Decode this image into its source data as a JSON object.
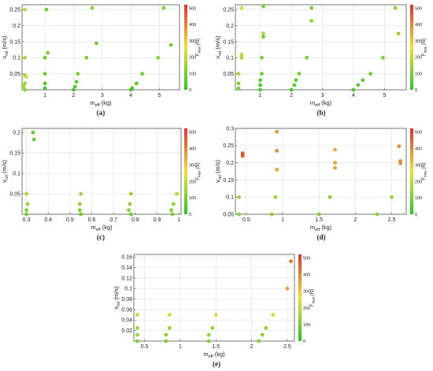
{
  "colorbar": {
    "label": "F_max (N)",
    "ticks": [
      0,
      100,
      200,
      300,
      400,
      500
    ],
    "range": [
      0,
      520
    ],
    "colors": [
      "#22cc22",
      "#f0e030",
      "#e53030"
    ]
  },
  "chart_data": [
    {
      "id": "a",
      "type": "scatter",
      "caption": "(a)",
      "xlabel": "m_eff (kg)",
      "ylabel": "v_rel (m/s)",
      "xlim": [
        0.2,
        5.7
      ],
      "ylim": [
        0.0,
        0.265
      ],
      "xticks": [
        1,
        2,
        3,
        4,
        5
      ],
      "yticks": [
        0.05,
        0.1,
        0.15,
        0.2,
        0.25
      ],
      "xtick_labels": [
        "1",
        "2",
        "3",
        "4",
        "5"
      ],
      "ytick_labels": [
        "0.05",
        "0.1",
        "0.15",
        "0.2",
        "0.25"
      ],
      "points": [
        {
          "x": 0.3,
          "y": 0.25,
          "f": 205
        },
        {
          "x": 1.05,
          "y": 0.25,
          "f": 90
        },
        {
          "x": 2.65,
          "y": 0.255,
          "f": 120
        },
        {
          "x": 5.15,
          "y": 0.255,
          "f": 110
        },
        {
          "x": 2.8,
          "y": 0.145,
          "f": 100
        },
        {
          "x": 5.4,
          "y": 0.14,
          "f": 95
        },
        {
          "x": 1.1,
          "y": 0.115,
          "f": 105
        },
        {
          "x": 0.3,
          "y": 0.1,
          "f": 175
        },
        {
          "x": 1.0,
          "y": 0.1,
          "f": 95
        },
        {
          "x": 2.45,
          "y": 0.1,
          "f": 110
        },
        {
          "x": 4.95,
          "y": 0.1,
          "f": 140
        },
        {
          "x": 2.15,
          "y": 0.05,
          "f": 100
        },
        {
          "x": 4.4,
          "y": 0.05,
          "f": 90
        },
        {
          "x": 1.0,
          "y": 0.05,
          "f": 80
        },
        {
          "x": 0.3,
          "y": 0.045,
          "f": 165
        },
        {
          "x": 0.35,
          "y": 0.04,
          "f": 235
        },
        {
          "x": 2.1,
          "y": 0.025,
          "f": 60
        },
        {
          "x": 4.2,
          "y": 0.02,
          "f": 60
        },
        {
          "x": 1.0,
          "y": 0.02,
          "f": 55
        },
        {
          "x": 0.3,
          "y": 0.02,
          "f": 160
        },
        {
          "x": 0.25,
          "y": 0.01,
          "f": 150
        },
        {
          "x": 1.0,
          "y": 0.005,
          "f": 45
        },
        {
          "x": 2.05,
          "y": 0.01,
          "f": 50
        },
        {
          "x": 4.05,
          "y": 0.005,
          "f": 45
        },
        {
          "x": 0.3,
          "y": 0.0,
          "f": 140
        },
        {
          "x": 2.0,
          "y": 0.0,
          "f": 40
        },
        {
          "x": 4.0,
          "y": 0.0,
          "f": 40
        }
      ]
    },
    {
      "id": "b",
      "type": "scatter",
      "caption": "(b)",
      "xlabel": "m_eff (kg)",
      "ylabel": "v_rel (m/s)",
      "xlim": [
        0.2,
        5.7
      ],
      "ylim": [
        0.0,
        0.265
      ],
      "xticks": [
        1,
        2,
        3,
        4,
        5
      ],
      "yticks": [
        0.05,
        0.1,
        0.15,
        0.2,
        0.25
      ],
      "xtick_labels": [
        "1",
        "2",
        "3",
        "4",
        "5"
      ],
      "ytick_labels": [
        "0.05",
        "0.1",
        "0.15",
        "0.2",
        "0.25"
      ],
      "points": [
        {
          "x": 0.4,
          "y": 0.255,
          "f": 240
        },
        {
          "x": 1.1,
          "y": 0.26,
          "f": 110
        },
        {
          "x": 2.65,
          "y": 0.255,
          "f": 110
        },
        {
          "x": 5.35,
          "y": 0.255,
          "f": 130
        },
        {
          "x": 2.65,
          "y": 0.215,
          "f": 140
        },
        {
          "x": 1.1,
          "y": 0.175,
          "f": 175
        },
        {
          "x": 5.45,
          "y": 0.175,
          "f": 145
        },
        {
          "x": 1.1,
          "y": 0.165,
          "f": 90
        },
        {
          "x": 0.4,
          "y": 0.11,
          "f": 220
        },
        {
          "x": 0.4,
          "y": 0.1,
          "f": 175
        },
        {
          "x": 1.05,
          "y": 0.1,
          "f": 110
        },
        {
          "x": 2.5,
          "y": 0.1,
          "f": 105
        },
        {
          "x": 4.95,
          "y": 0.1,
          "f": 105
        },
        {
          "x": 2.25,
          "y": 0.05,
          "f": 95
        },
        {
          "x": 4.55,
          "y": 0.05,
          "f": 95
        },
        {
          "x": 0.3,
          "y": 0.05,
          "f": 165
        },
        {
          "x": 1.05,
          "y": 0.05,
          "f": 90
        },
        {
          "x": 1.0,
          "y": 0.03,
          "f": 70
        },
        {
          "x": 2.15,
          "y": 0.03,
          "f": 70
        },
        {
          "x": 4.3,
          "y": 0.03,
          "f": 70
        },
        {
          "x": 0.3,
          "y": 0.02,
          "f": 100
        },
        {
          "x": 1.0,
          "y": 0.015,
          "f": 55
        },
        {
          "x": 2.1,
          "y": 0.015,
          "f": 55
        },
        {
          "x": 4.15,
          "y": 0.015,
          "f": 55
        },
        {
          "x": 0.3,
          "y": 0.005,
          "f": 120
        },
        {
          "x": 1.0,
          "y": 0.0,
          "f": 45
        },
        {
          "x": 2.0,
          "y": 0.0,
          "f": 45
        },
        {
          "x": 4.0,
          "y": 0.0,
          "f": 45
        }
      ]
    },
    {
      "id": "c",
      "type": "scatter",
      "caption": "(c)",
      "xlabel": "m_eff (kg)",
      "ylabel": "v_rel (m/s)",
      "xlim": [
        0.28,
        1.01
      ],
      "ylim": [
        0.0,
        0.21
      ],
      "xticks": [
        0.3,
        0.4,
        0.5,
        0.6,
        0.7,
        0.8,
        0.9,
        1.0
      ],
      "yticks": [
        0.05,
        0.1,
        0.15,
        0.2
      ],
      "xtick_labels": [
        "0.3",
        "0.4",
        "0.5",
        "0.6",
        "0.7",
        "0.8",
        "0.9",
        "1"
      ],
      "ytick_labels": [
        "0.05",
        "0.1",
        "0.15",
        "0.2"
      ],
      "points": [
        {
          "x": 0.33,
          "y": 0.2,
          "f": 75
        },
        {
          "x": 0.335,
          "y": 0.183,
          "f": 80
        },
        {
          "x": 0.3,
          "y": 0.05,
          "f": 175
        },
        {
          "x": 0.55,
          "y": 0.05,
          "f": 160
        },
        {
          "x": 0.78,
          "y": 0.05,
          "f": 160
        },
        {
          "x": 0.99,
          "y": 0.05,
          "f": 190
        },
        {
          "x": 0.305,
          "y": 0.025,
          "f": 140
        },
        {
          "x": 0.545,
          "y": 0.025,
          "f": 140
        },
        {
          "x": 0.775,
          "y": 0.025,
          "f": 140
        },
        {
          "x": 0.975,
          "y": 0.025,
          "f": 140
        },
        {
          "x": 0.3,
          "y": 0.01,
          "f": 115
        },
        {
          "x": 0.545,
          "y": 0.01,
          "f": 115
        },
        {
          "x": 0.77,
          "y": 0.01,
          "f": 115
        },
        {
          "x": 0.965,
          "y": 0.01,
          "f": 115
        },
        {
          "x": 0.3,
          "y": 0.0,
          "f": 90
        },
        {
          "x": 0.55,
          "y": 0.0,
          "f": 90
        },
        {
          "x": 0.78,
          "y": 0.0,
          "f": 90
        },
        {
          "x": 0.97,
          "y": 0.0,
          "f": 90
        }
      ]
    },
    {
      "id": "d",
      "type": "scatter",
      "caption": "(d)",
      "xlabel": "m_eff (kg)",
      "ylabel": "v_rel (m/s)",
      "xlim": [
        0.35,
        2.7
      ],
      "ylim": [
        0.05,
        0.3
      ],
      "xticks": [
        0.5,
        1,
        1.5,
        2,
        2.5
      ],
      "yticks": [
        0.05,
        0.1,
        0.15,
        0.2,
        0.25,
        0.3
      ],
      "xtick_labels": [
        "0.5",
        "1",
        "1.5",
        "2",
        "2.5"
      ],
      "ytick_labels": [
        "0.05",
        "0.1",
        "0.15",
        "0.2",
        "0.25",
        "0.3"
      ],
      "points": [
        {
          "x": 0.45,
          "y": 0.225,
          "f": 460
        },
        {
          "x": 0.45,
          "y": 0.22,
          "f": 470
        },
        {
          "x": 0.45,
          "y": 0.228,
          "f": 450
        },
        {
          "x": 0.92,
          "y": 0.29,
          "f": 360
        },
        {
          "x": 0.92,
          "y": 0.235,
          "f": 390
        },
        {
          "x": 0.92,
          "y": 0.18,
          "f": 340
        },
        {
          "x": 1.72,
          "y": 0.238,
          "f": 340
        },
        {
          "x": 1.72,
          "y": 0.2,
          "f": 340
        },
        {
          "x": 1.72,
          "y": 0.185,
          "f": 350
        },
        {
          "x": 2.6,
          "y": 0.248,
          "f": 380
        },
        {
          "x": 2.62,
          "y": 0.205,
          "f": 390
        },
        {
          "x": 2.62,
          "y": 0.198,
          "f": 380
        },
        {
          "x": 0.4,
          "y": 0.1,
          "f": 160
        },
        {
          "x": 0.9,
          "y": 0.1,
          "f": 150
        },
        {
          "x": 1.65,
          "y": 0.1,
          "f": 140
        },
        {
          "x": 2.5,
          "y": 0.1,
          "f": 150
        },
        {
          "x": 0.4,
          "y": 0.05,
          "f": 130
        },
        {
          "x": 0.85,
          "y": 0.05,
          "f": 130
        },
        {
          "x": 1.5,
          "y": 0.05,
          "f": 130
        },
        {
          "x": 2.3,
          "y": 0.05,
          "f": 130
        }
      ]
    },
    {
      "id": "e",
      "type": "scatter",
      "caption": "(e)",
      "xlabel": "m_eff (kg)",
      "ylabel": "v_rel (m/s)",
      "xlim": [
        0.35,
        2.6
      ],
      "ylim": [
        0.0,
        0.165
      ],
      "xticks": [
        0.5,
        1,
        1.5,
        2,
        2.5
      ],
      "yticks": [
        0.02,
        0.04,
        0.06,
        0.08,
        0.1,
        0.12,
        0.14,
        0.16
      ],
      "xtick_labels": [
        "0.5",
        "1",
        "1.5",
        "2",
        "2.5"
      ],
      "ytick_labels": [
        "0.02",
        "0.04",
        "0.06",
        "0.08",
        "0.1",
        "0.12",
        "0.14",
        "0.16"
      ],
      "points": [
        {
          "x": 2.55,
          "y": 0.152,
          "f": 420
        },
        {
          "x": 2.5,
          "y": 0.1,
          "f": 360
        },
        {
          "x": 2.3,
          "y": 0.05,
          "f": 240
        },
        {
          "x": 1.5,
          "y": 0.05,
          "f": 230
        },
        {
          "x": 0.85,
          "y": 0.05,
          "f": 230
        },
        {
          "x": 0.4,
          "y": 0.05,
          "f": 230
        },
        {
          "x": 2.2,
          "y": 0.025,
          "f": 150
        },
        {
          "x": 1.45,
          "y": 0.025,
          "f": 150
        },
        {
          "x": 0.85,
          "y": 0.025,
          "f": 150
        },
        {
          "x": 0.4,
          "y": 0.025,
          "f": 150
        },
        {
          "x": 2.15,
          "y": 0.012,
          "f": 140
        },
        {
          "x": 1.4,
          "y": 0.012,
          "f": 140
        },
        {
          "x": 0.8,
          "y": 0.012,
          "f": 140
        },
        {
          "x": 0.4,
          "y": 0.012,
          "f": 140
        },
        {
          "x": 2.1,
          "y": 0.0,
          "f": 110
        },
        {
          "x": 1.4,
          "y": 0.0,
          "f": 110
        },
        {
          "x": 0.8,
          "y": 0.0,
          "f": 110
        },
        {
          "x": 0.4,
          "y": 0.0,
          "f": 110
        }
      ]
    }
  ]
}
